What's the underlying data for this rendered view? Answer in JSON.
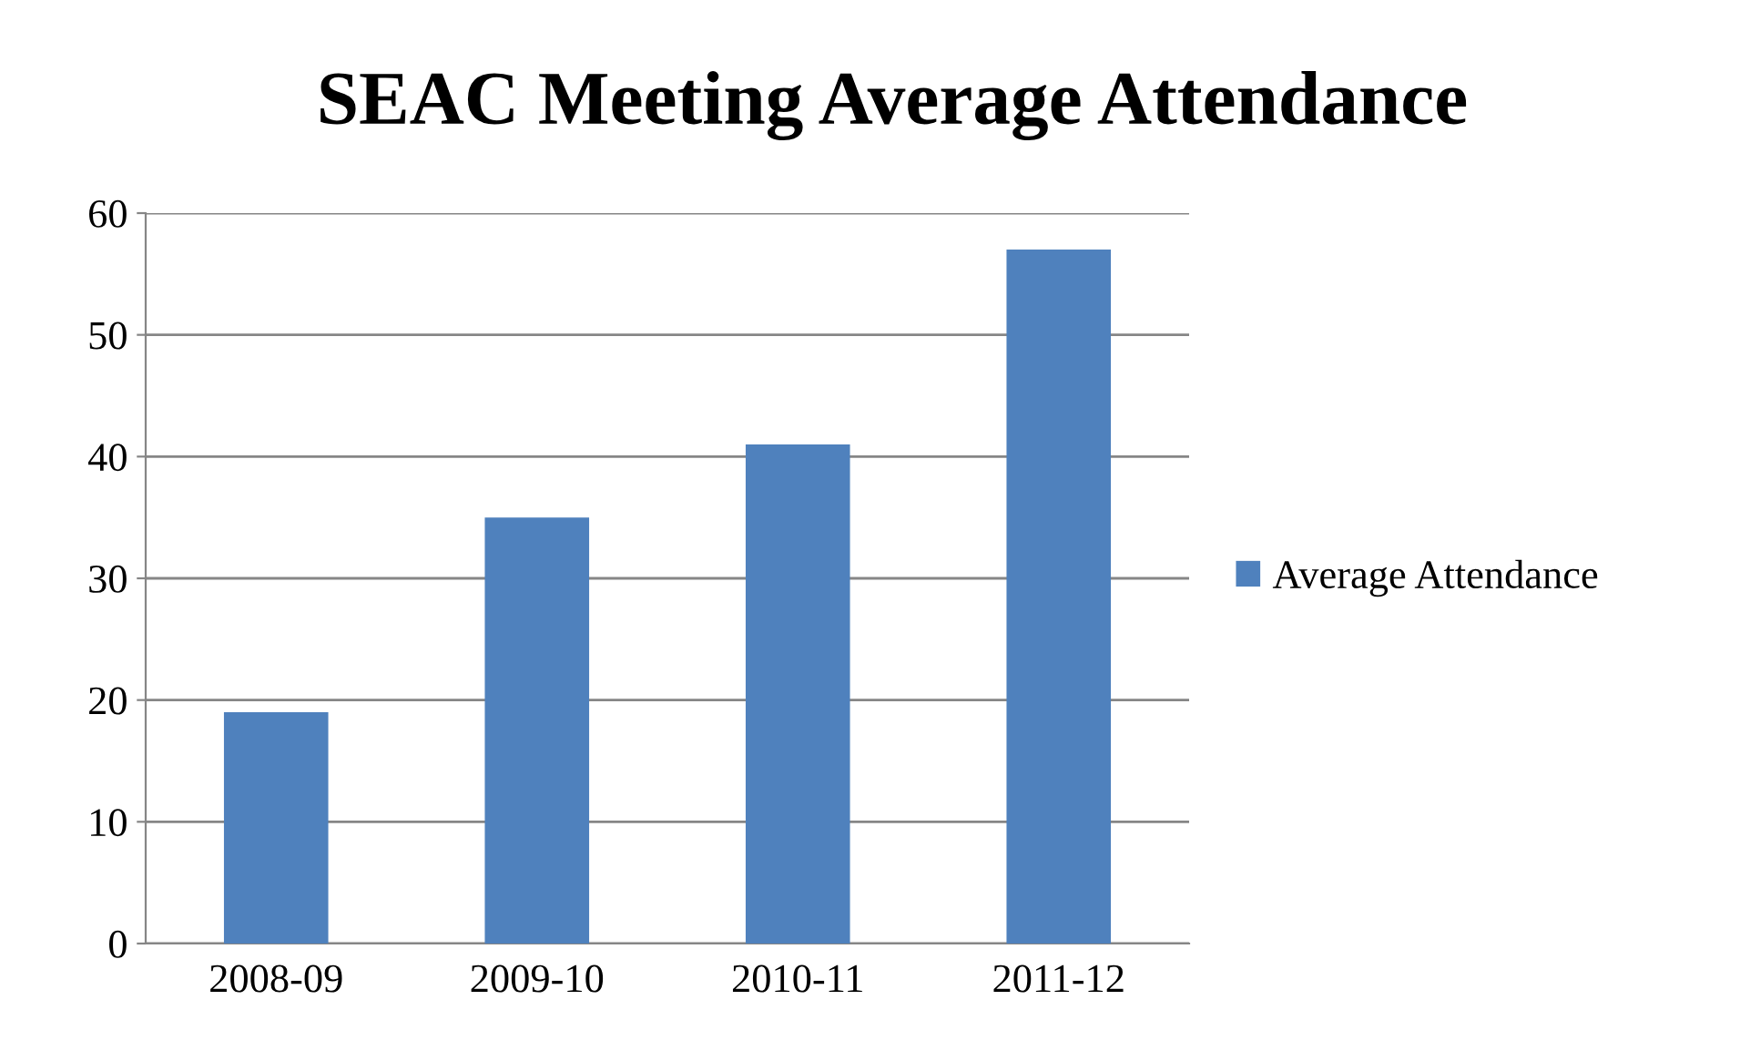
{
  "chart_data": {
    "type": "bar",
    "title": "SEAC Meeting Average Attendance",
    "categories": [
      "2008-09",
      "2009-10",
      "2010-11",
      "2011-12"
    ],
    "series": [
      {
        "name": "Average Attendance",
        "color": "#4f81bd",
        "values": [
          19,
          35,
          41,
          57
        ]
      }
    ],
    "ylim": [
      0,
      60
    ],
    "yticks": [
      0,
      10,
      20,
      30,
      40,
      50,
      60
    ],
    "grid": "y",
    "legend": "right"
  }
}
